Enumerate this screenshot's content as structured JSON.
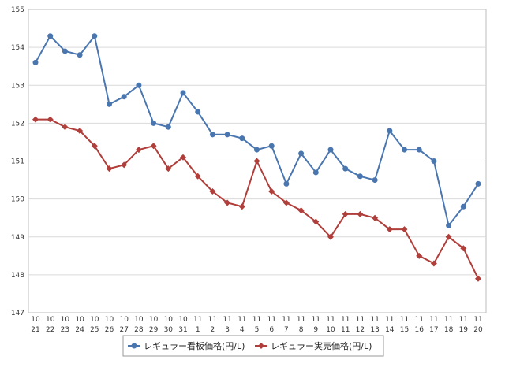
{
  "chart_data": {
    "type": "line",
    "title": "",
    "xlabel": "",
    "ylabel": "",
    "ylim": [
      147,
      155
    ],
    "yticks": [
      147,
      148,
      149,
      150,
      151,
      152,
      153,
      154,
      155
    ],
    "grid": true,
    "legend_position": "bottom",
    "categories": [
      {
        "month": "10",
        "day": "21"
      },
      {
        "month": "10",
        "day": "22"
      },
      {
        "month": "10",
        "day": "23"
      },
      {
        "month": "10",
        "day": "24"
      },
      {
        "month": "10",
        "day": "25"
      },
      {
        "month": "10",
        "day": "26"
      },
      {
        "month": "10",
        "day": "27"
      },
      {
        "month": "10",
        "day": "28"
      },
      {
        "month": "10",
        "day": "29"
      },
      {
        "month": "10",
        "day": "30"
      },
      {
        "month": "10",
        "day": "31"
      },
      {
        "month": "11",
        "day": "1"
      },
      {
        "month": "11",
        "day": "2"
      },
      {
        "month": "11",
        "day": "3"
      },
      {
        "month": "11",
        "day": "4"
      },
      {
        "month": "11",
        "day": "5"
      },
      {
        "month": "11",
        "day": "6"
      },
      {
        "month": "11",
        "day": "7"
      },
      {
        "month": "11",
        "day": "8"
      },
      {
        "month": "11",
        "day": "9"
      },
      {
        "month": "11",
        "day": "10"
      },
      {
        "month": "11",
        "day": "11"
      },
      {
        "month": "11",
        "day": "12"
      },
      {
        "month": "11",
        "day": "13"
      },
      {
        "month": "11",
        "day": "14"
      },
      {
        "month": "11",
        "day": "15"
      },
      {
        "month": "11",
        "day": "16"
      },
      {
        "month": "11",
        "day": "17"
      },
      {
        "month": "11",
        "day": "18"
      },
      {
        "month": "11",
        "day": "19"
      },
      {
        "month": "11",
        "day": "20"
      }
    ],
    "series": [
      {
        "name": "レギュラー看板価格(円/L)",
        "color": "#4a76b0",
        "marker": "circle",
        "values": [
          153.6,
          154.3,
          153.9,
          153.8,
          154.3,
          152.5,
          152.7,
          153.0,
          152.0,
          151.9,
          152.8,
          152.3,
          151.7,
          151.7,
          151.6,
          151.3,
          151.4,
          150.4,
          151.2,
          150.7,
          151.3,
          150.8,
          150.6,
          150.5,
          151.8,
          151.3,
          151.3,
          151.0,
          149.3,
          149.8,
          150.4
        ]
      },
      {
        "name": "レギュラー実売価格(円/L)",
        "color": "#b03e3a",
        "marker": "diamond",
        "values": [
          152.1,
          152.1,
          151.9,
          151.8,
          151.4,
          150.8,
          150.9,
          151.3,
          151.4,
          150.8,
          151.1,
          150.6,
          150.2,
          149.9,
          149.8,
          151.0,
          150.2,
          149.9,
          149.7,
          149.4,
          149.0,
          149.6,
          149.6,
          149.5,
          149.2,
          149.2,
          148.5,
          148.3,
          149.0,
          148.7,
          147.9
        ]
      }
    ]
  }
}
